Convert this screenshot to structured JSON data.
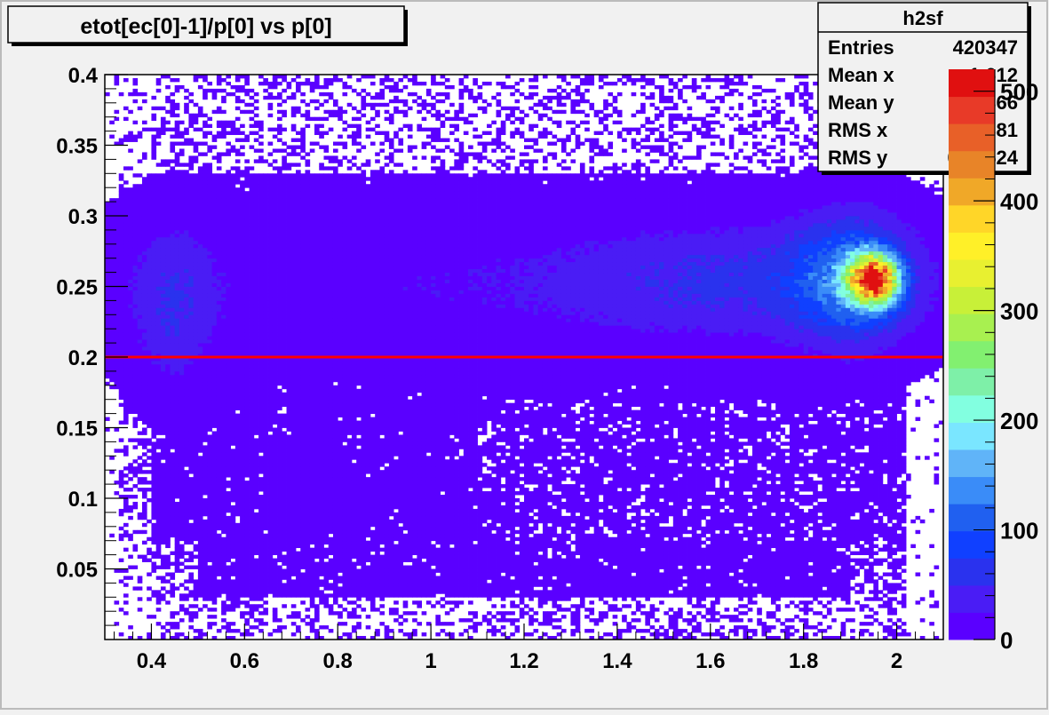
{
  "chart_data": {
    "type": "heatmap",
    "title": "etot[ec[0]-1]/p[0] vs p[0]",
    "xlabel": "",
    "ylabel": "",
    "xlim": [
      0.3,
      2.1
    ],
    "ylim": [
      0.0,
      0.4
    ],
    "x_ticks": [
      "0.4",
      "0.6",
      "0.8",
      "1",
      "1.2",
      "1.4",
      "1.6",
      "1.8",
      "2"
    ],
    "x_tick_values": [
      0.4,
      0.6,
      0.8,
      1.0,
      1.2,
      1.4,
      1.6,
      1.8,
      2.0
    ],
    "y_ticks": [
      "0.05",
      "0.1",
      "0.15",
      "0.2",
      "0.25",
      "0.3",
      "0.35",
      "0.4"
    ],
    "y_tick_values": [
      0.05,
      0.1,
      0.15,
      0.2,
      0.25,
      0.3,
      0.35,
      0.4
    ],
    "z_ticks": [
      "0",
      "100",
      "200",
      "300",
      "400",
      "500"
    ],
    "z_tick_values": [
      0,
      100,
      200,
      300,
      400,
      500
    ],
    "zlim": [
      0,
      520
    ],
    "palette": [
      "#5a00ff",
      "#4a1cf5",
      "#2a32ee",
      "#1040ff",
      "#2060f0",
      "#3a8cf8",
      "#60b4f8",
      "#7ae6ff",
      "#82ffe0",
      "#7ef0a8",
      "#82f070",
      "#a8f050",
      "#c8f038",
      "#e8f030",
      "#fff028",
      "#ffd628",
      "#f0a828",
      "#e88428",
      "#e86028",
      "#e83a28",
      "#e01010"
    ],
    "cut_line": {
      "y": 0.2,
      "x_from": 0.3,
      "x_to": 2.1,
      "color": "#ff0000"
    },
    "blobs": [
      {
        "x": 1.95,
        "y": 0.255,
        "sx": 0.035,
        "sy": 0.012,
        "amp": 460
      },
      {
        "x": 1.9,
        "y": 0.255,
        "sx": 0.085,
        "sy": 0.03,
        "amp": 110
      },
      {
        "x": 1.65,
        "y": 0.255,
        "sx": 0.22,
        "sy": 0.025,
        "amp": 42
      },
      {
        "x": 0.45,
        "y": 0.235,
        "sx": 0.06,
        "sy": 0.04,
        "amp": 40
      },
      {
        "x": 1.1,
        "y": 0.25,
        "sx": 0.7,
        "sy": 0.035,
        "amp": 22
      },
      {
        "x": 0.75,
        "y": 0.11,
        "sx": 0.06,
        "sy": 0.015,
        "amp": 12
      }
    ],
    "stats": {
      "name": "h2sf",
      "rows": [
        {
          "label": "Entries",
          "value": "420347"
        },
        {
          "label": "Mean x",
          "value": "1.612"
        },
        {
          "label": "Mean y",
          "value": "0.2366"
        },
        {
          "label": "RMS x",
          "value": "0.4381"
        },
        {
          "label": "RMS y",
          "value": "0.03524"
        }
      ]
    }
  }
}
